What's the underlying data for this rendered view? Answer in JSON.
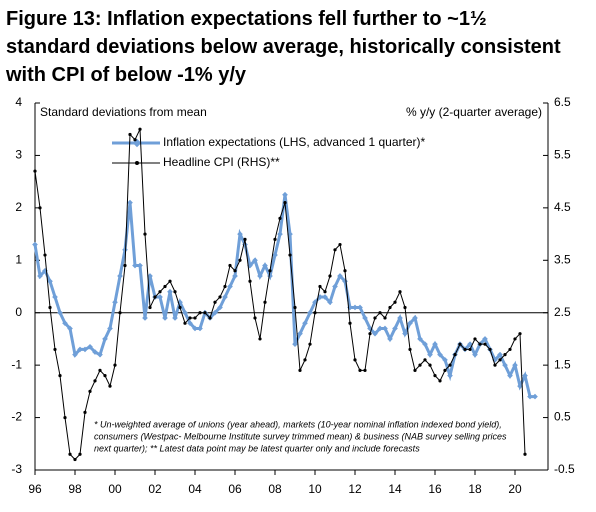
{
  "chart_data": {
    "type": "line",
    "title": [
      "Figure 13: Inflation expectations fell further to ~1½",
      "standard deviations below average, historically consistent",
      "with CPI of below -1% y/y"
    ],
    "ylabel": "Standard deviations from mean",
    "y2label": "% y/y (2-quarter average)",
    "annotation": [
      "* Un-weighted average of unions (year ahead), markets (10-year nominal inflation indexed bond yield),",
      "consumers (Westpac- Melbourne Institute survey trimmed mean) & business (NAB survey selling prices",
      "next quarter); ** Latest data point may be latest quarter only and include forecasts"
    ],
    "xlim": [
      1996,
      2021.65
    ],
    "xticks": [
      {
        "value": 1996,
        "label": "96"
      },
      {
        "value": 1998,
        "label": "98"
      },
      {
        "value": 2000,
        "label": "00"
      },
      {
        "value": 2002,
        "label": "02"
      },
      {
        "value": 2004,
        "label": "04"
      },
      {
        "value": 2006,
        "label": "06"
      },
      {
        "value": 2008,
        "label": "08"
      },
      {
        "value": 2010,
        "label": "10"
      },
      {
        "value": 2012,
        "label": "12"
      },
      {
        "value": 2014,
        "label": "14"
      },
      {
        "value": 2016,
        "label": "16"
      },
      {
        "value": 2018,
        "label": "18"
      },
      {
        "value": 2020,
        "label": "20"
      }
    ],
    "ylim": [
      -3,
      4
    ],
    "yticks": [
      -3,
      -2,
      -1,
      0,
      1,
      2,
      3,
      4
    ],
    "y2lim": [
      -0.5,
      6.5
    ],
    "y2ticks": [
      -0.5,
      0.5,
      1.5,
      2.5,
      3.5,
      4.5,
      5.5,
      6.5
    ],
    "legend": "upper center",
    "series": [
      {
        "name": "Inflation expectations (LHS, advanced 1 quarter)*",
        "color": "#6f9fd8",
        "axis": "y",
        "x": [
          1996,
          1996.25,
          1996.5,
          1996.75,
          1997,
          1997.25,
          1997.5,
          1997.75,
          1998,
          1998.25,
          1998.5,
          1998.75,
          1999,
          1999.25,
          1999.5,
          1999.75,
          2000,
          2000.25,
          2000.5,
          2000.75,
          2001,
          2001.25,
          2001.5,
          2001.75,
          2002,
          2002.25,
          2002.5,
          2002.75,
          2003,
          2003.25,
          2003.5,
          2003.75,
          2004,
          2004.25,
          2004.5,
          2004.75,
          2005,
          2005.25,
          2005.5,
          2005.75,
          2006,
          2006.25,
          2006.5,
          2006.75,
          2007,
          2007.25,
          2007.5,
          2007.75,
          2008,
          2008.25,
          2008.5,
          2008.75,
          2009,
          2009.25,
          2009.5,
          2009.75,
          2010,
          2010.25,
          2010.5,
          2010.75,
          2011,
          2011.25,
          2011.5,
          2011.75,
          2012,
          2012.25,
          2012.5,
          2012.75,
          2013,
          2013.25,
          2013.5,
          2013.75,
          2014,
          2014.25,
          2014.5,
          2014.75,
          2015,
          2015.25,
          2015.5,
          2015.75,
          2016,
          2016.25,
          2016.5,
          2016.75,
          2017,
          2017.25,
          2017.5,
          2017.75,
          2018,
          2018.25,
          2018.5,
          2018.75,
          2019,
          2019.25,
          2019.5,
          2019.75,
          2020,
          2020.25,
          2020.5,
          2020.75,
          2021
        ],
        "values": [
          1.3,
          0.7,
          0.8,
          0.6,
          0.3,
          0.0,
          -0.2,
          -0.3,
          -0.8,
          -0.7,
          -0.7,
          -0.65,
          -0.75,
          -0.8,
          -0.5,
          -0.3,
          0.2,
          0.7,
          1.2,
          2.1,
          0.9,
          0.9,
          -0.1,
          0.7,
          0.3,
          0.3,
          -0.1,
          0.4,
          -0.1,
          0.2,
          0.0,
          -0.2,
          -0.3,
          -0.3,
          0.0,
          -0.1,
          0.0,
          0.1,
          0.3,
          0.5,
          0.7,
          1.5,
          1.3,
          0.9,
          1.0,
          0.7,
          0.9,
          0.7,
          1.1,
          1.5,
          2.25,
          1.5,
          -0.6,
          -0.4,
          -0.2,
          0.0,
          0.2,
          0.3,
          0.3,
          0.2,
          0.5,
          0.7,
          0.6,
          0.1,
          0.1,
          0.1,
          -0.1,
          -0.3,
          -0.4,
          -0.3,
          -0.3,
          -0.5,
          -0.3,
          -0.1,
          -0.4,
          -0.2,
          -0.1,
          -0.5,
          -0.6,
          -0.8,
          -0.6,
          -0.8,
          -0.9,
          -1.2,
          -0.8,
          -0.6,
          -0.7,
          -0.6,
          -0.8,
          -0.6,
          -0.5,
          -0.7,
          -0.9,
          -0.8,
          -1.0,
          -1.2,
          -1.0,
          -1.4,
          -1.2,
          -1.6,
          -1.6
        ]
      },
      {
        "name": "Headline CPI (RHS)**",
        "color": "#000000",
        "axis": "y2",
        "x": [
          1996,
          1996.25,
          1996.5,
          1996.75,
          1997,
          1997.25,
          1997.5,
          1997.75,
          1998,
          1998.25,
          1998.5,
          1998.75,
          1999,
          1999.25,
          1999.5,
          1999.75,
          2000,
          2000.25,
          2000.5,
          2000.75,
          2001,
          2001.25,
          2001.5,
          2001.75,
          2002,
          2002.25,
          2002.5,
          2002.75,
          2003,
          2003.25,
          2003.5,
          2003.75,
          2004,
          2004.25,
          2004.5,
          2004.75,
          2005,
          2005.25,
          2005.5,
          2005.75,
          2006,
          2006.25,
          2006.5,
          2006.75,
          2007,
          2007.25,
          2007.5,
          2007.75,
          2008,
          2008.25,
          2008.5,
          2008.75,
          2009,
          2009.25,
          2009.5,
          2009.75,
          2010,
          2010.25,
          2010.5,
          2010.75,
          2011,
          2011.25,
          2011.5,
          2011.75,
          2012,
          2012.25,
          2012.5,
          2012.75,
          2013,
          2013.25,
          2013.5,
          2013.75,
          2014,
          2014.25,
          2014.5,
          2014.75,
          2015,
          2015.25,
          2015.5,
          2015.75,
          2016,
          2016.25,
          2016.5,
          2016.75,
          2017,
          2017.25,
          2017.5,
          2017.75,
          2018,
          2018.25,
          2018.5,
          2018.75,
          2019,
          2019.25,
          2019.5,
          2019.75,
          2020,
          2020.25,
          2020.5
        ],
        "values": [
          5.2,
          4.5,
          3.6,
          2.6,
          1.8,
          1.3,
          0.5,
          -0.2,
          -0.3,
          -0.2,
          0.6,
          1.0,
          1.2,
          1.4,
          1.3,
          1.1,
          1.5,
          2.5,
          3.4,
          5.9,
          5.8,
          6.0,
          4.0,
          2.6,
          2.8,
          2.9,
          3.0,
          3.1,
          2.9,
          2.6,
          2.3,
          2.4,
          2.4,
          2.5,
          2.5,
          2.4,
          2.7,
          2.8,
          3.0,
          3.4,
          3.3,
          3.5,
          3.9,
          3.1,
          2.4,
          2.0,
          2.7,
          3.3,
          3.9,
          4.3,
          4.6,
          3.6,
          2.6,
          1.4,
          1.6,
          1.9,
          2.5,
          3.0,
          2.9,
          3.2,
          3.7,
          3.8,
          3.3,
          2.3,
          1.6,
          1.4,
          1.4,
          2.1,
          2.4,
          2.5,
          2.4,
          2.6,
          2.7,
          2.9,
          2.6,
          1.8,
          1.4,
          1.5,
          1.6,
          1.5,
          1.3,
          1.2,
          1.4,
          1.5,
          1.7,
          1.9,
          1.8,
          1.8,
          2.0,
          1.9,
          1.9,
          1.8,
          1.5,
          1.6,
          1.7,
          1.8,
          2.0,
          2.1,
          -0.2
        ]
      }
    ]
  }
}
